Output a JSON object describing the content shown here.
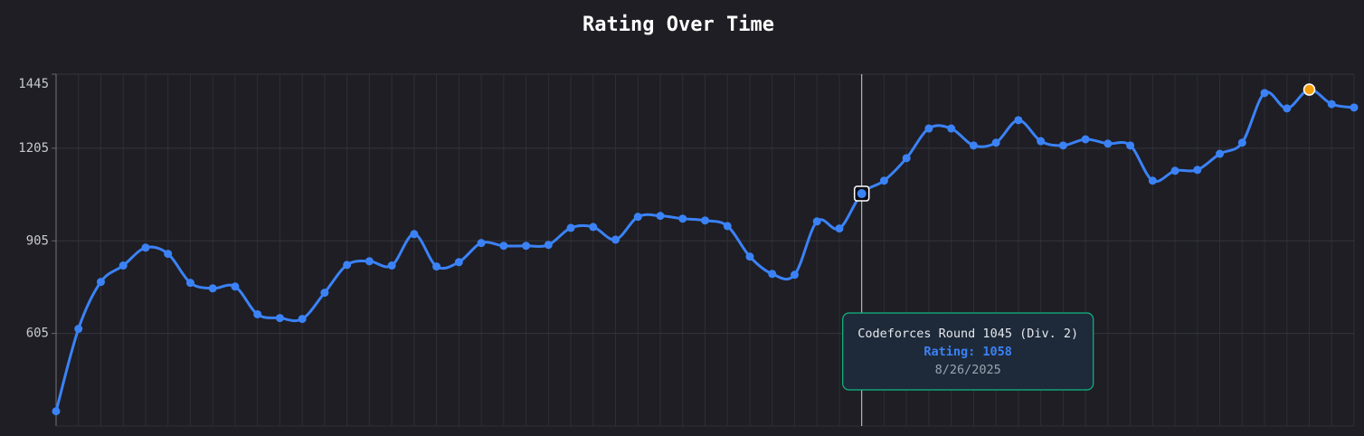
{
  "chart_data": {
    "type": "line",
    "title": "Rating Over Time",
    "categories": [
      null,
      null,
      null,
      null,
      null,
      null,
      null,
      null,
      null,
      null,
      null,
      null,
      null,
      null,
      null,
      null,
      null,
      null,
      null,
      null,
      null,
      null,
      null,
      null,
      null,
      null,
      null,
      null,
      null,
      null,
      null,
      null,
      null,
      null,
      null,
      null,
      null,
      null,
      null,
      null,
      null,
      null,
      null,
      null,
      null,
      null,
      null,
      null,
      null,
      null,
      null,
      null,
      null,
      null,
      null,
      null,
      null,
      null,
      null
    ],
    "values": [
      353,
      620,
      772,
      825,
      883,
      863,
      769,
      751,
      757,
      667,
      655,
      652,
      737,
      827,
      839,
      825,
      927,
      822,
      836,
      898,
      889,
      889,
      892,
      947,
      950,
      909,
      983,
      986,
      977,
      971,
      953,
      854,
      798,
      795,
      968,
      945,
      1058,
      1100,
      1173,
      1269,
      1269,
      1214,
      1223,
      1296,
      1228,
      1214,
      1234,
      1220,
      1214,
      1100,
      1132,
      1135,
      1187,
      1223,
      1384,
      1334,
      1395,
      1348,
      1337
    ],
    "color": "#3b82f6",
    "max_color": "#f59e0b",
    "ylim": [
      305,
      1445
    ],
    "yticks": [
      605,
      905,
      1205,
      1445
    ],
    "grid": true,
    "tooltip": {
      "contest": "Codeforces Round 1045 (Div. 2)",
      "rating": {
        "value": 1058,
        "label": "Rating: 1058"
      },
      "date": "8/26/2025"
    }
  }
}
